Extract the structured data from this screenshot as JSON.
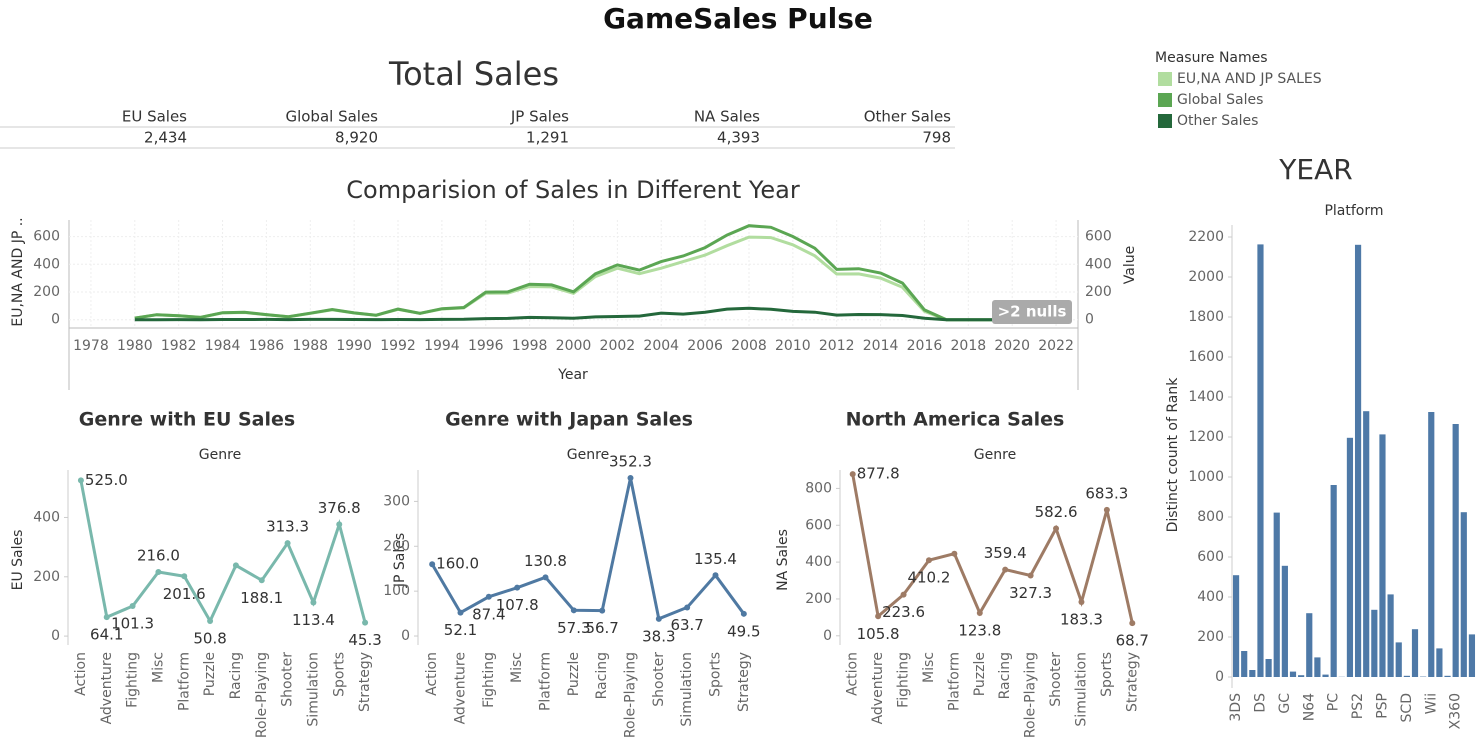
{
  "title": "GameSales Pulse",
  "summary": {
    "title": "Total Sales",
    "columns": [
      "EU Sales",
      "Global Sales",
      "JP Sales",
      "NA Sales",
      "Other Sales"
    ],
    "values": [
      "2,434",
      "8,920",
      "1,291",
      "4,393",
      "798"
    ]
  },
  "chart_data": [
    {
      "type": "line",
      "title": "Comparision of Sales in Different Year",
      "x_label": "Year",
      "y_label": "EU,NA AND JP ..",
      "y2_label": "Value",
      "legend_title": "Measure Names",
      "annotation": ">2 nulls",
      "grid": true,
      "x": [
        1980,
        1981,
        1982,
        1983,
        1984,
        1985,
        1986,
        1987,
        1988,
        1989,
        1990,
        1991,
        1992,
        1993,
        1994,
        1995,
        1996,
        1997,
        1998,
        1999,
        2000,
        2001,
        2002,
        2003,
        2004,
        2005,
        2006,
        2007,
        2008,
        2009,
        2010,
        2011,
        2012,
        2013,
        2014,
        2015,
        2016,
        2017,
        2020
      ],
      "xlim": [
        1977,
        2023
      ],
      "xticks": [
        1978,
        1980,
        1982,
        1984,
        1986,
        1988,
        1990,
        1992,
        1994,
        1996,
        1998,
        2000,
        2002,
        2004,
        2006,
        2008,
        2010,
        2012,
        2014,
        2016,
        2018,
        2020,
        2022
      ],
      "ylim": [
        -60,
        720
      ],
      "yticks": [
        0,
        200,
        400,
        600
      ],
      "y2lim": [
        -60,
        720
      ],
      "y2ticks": [
        0,
        200,
        400,
        600
      ],
      "series": [
        {
          "name": "EU,NA AND JP SALES",
          "color": "#b1dd9f",
          "axis": "y",
          "values": [
            11.3,
            35.5,
            28.3,
            16.7,
            49.0,
            52.2,
            35.2,
            21.0,
            45.2,
            71.3,
            48.0,
            31.4,
            74.5,
            45.1,
            77.3,
            85.5,
            191.4,
            191.7,
            239.6,
            236.7,
            190.6,
            311.5,
            372.2,
            331.9,
            371.9,
            419.3,
            466.6,
            534.3,
            596.5,
            592.6,
            540.6,
            461.6,
            330.0,
            330.9,
            300.1,
            234.3,
            60.7,
            0.05,
            0.27
          ]
        },
        {
          "name": "Global Sales",
          "color": "#5ba653",
          "axis": "y2",
          "values": [
            11.4,
            35.8,
            28.9,
            16.8,
            50.4,
            53.9,
            37.1,
            21.7,
            47.2,
            73.5,
            49.4,
            32.2,
            76.2,
            46.0,
            79.2,
            88.1,
            199.2,
            201.0,
            256.5,
            251.3,
            201.6,
            331.5,
            395.5,
            357.9,
            419.3,
            459.9,
            521.0,
            611.1,
            678.9,
            667.3,
            600.5,
            516.0,
            363.5,
            368.1,
            337.1,
            264.4,
            70.9,
            0.05,
            0.29
          ]
        },
        {
          "name": "Other Sales",
          "color": "#24683b",
          "axis": "y2",
          "values": [
            0.1,
            0.3,
            0.5,
            0.1,
            1.4,
            1.7,
            1.9,
            0.7,
            2.0,
            2.2,
            1.4,
            0.8,
            1.6,
            0.9,
            1.9,
            2.6,
            7.7,
            9.3,
            16.9,
            14.6,
            11.0,
            20.0,
            23.3,
            26.0,
            47.4,
            40.6,
            54.4,
            76.8,
            82.4,
            74.7,
            59.9,
            54.4,
            33.5,
            37.2,
            37.0,
            30.1,
            10.2,
            0,
            0.02
          ]
        }
      ]
    },
    {
      "type": "line",
      "title": "Genre with EU Sales",
      "x_label": "Genre",
      "y_label": "EU Sales",
      "color": "#79b8ac",
      "categories": [
        "Action",
        "Adventure",
        "Fighting",
        "Misc",
        "Platform",
        "Puzzle",
        "Racing",
        "Role-Playing",
        "Shooter",
        "Simulation",
        "Sports",
        "Strategy"
      ],
      "values": [
        525.0,
        64.1,
        101.3,
        216.0,
        201.6,
        50.8,
        238.4,
        188.1,
        313.3,
        113.4,
        376.8,
        45.3
      ],
      "value_labels": [
        "525.0",
        "64.1",
        "101.3",
        "216.0",
        "201.6",
        "50.8",
        null,
        "188.1",
        "313.3",
        "113.4",
        "376.8",
        "45.3"
      ],
      "ylim": [
        -30,
        560
      ],
      "yticks": [
        0,
        200,
        400
      ]
    },
    {
      "type": "line",
      "title": "Genre with Japan Sales",
      "x_label": "Genre",
      "y_label": "JP Sales",
      "color": "#4f79a2",
      "categories": [
        "Action",
        "Adventure",
        "Fighting",
        "Misc",
        "Platform",
        "Puzzle",
        "Racing",
        "Role-Playing",
        "Shooter",
        "Simulation",
        "Sports",
        "Strategy"
      ],
      "values": [
        160.0,
        52.1,
        87.4,
        107.8,
        130.8,
        57.3,
        56.7,
        352.3,
        38.3,
        63.7,
        135.4,
        49.5
      ],
      "value_labels": [
        "160.0",
        "52.1",
        "87.4",
        "107.8",
        "130.8",
        "57.3",
        "56.7",
        "352.3",
        "38.3",
        "63.7",
        "135.4",
        "49.5"
      ],
      "ylim": [
        -20,
        370
      ],
      "yticks": [
        0,
        100,
        200,
        300
      ]
    },
    {
      "type": "line",
      "title": "North America Sales",
      "x_label": "Genre",
      "y_label": "NA Sales",
      "color": "#9e7b65",
      "categories": [
        "Action",
        "Adventure",
        "Fighting",
        "Misc",
        "Platform",
        "Puzzle",
        "Racing",
        "Role-Playing",
        "Shooter",
        "Simulation",
        "Sports",
        "Strategy"
      ],
      "values": [
        877.8,
        105.8,
        223.6,
        410.2,
        445.5,
        123.8,
        359.4,
        327.3,
        582.6,
        183.3,
        683.3,
        68.7
      ],
      "value_labels": [
        "877.8",
        "105.8",
        "223.6",
        "410.2",
        null,
        "123.8",
        "359.4",
        "327.3",
        "582.6",
        "183.3",
        "683.3",
        "68.7"
      ],
      "ylim": [
        -50,
        900
      ],
      "yticks": [
        0,
        200,
        400,
        600,
        800
      ]
    },
    {
      "type": "bar",
      "title": "YEAR",
      "subtitle": "Platform",
      "y_label": "Distinct count of Rank",
      "color": "#4e79a7",
      "categories": [
        "3DS",
        null,
        null,
        "DS",
        null,
        null,
        "GC",
        null,
        null,
        "N64",
        null,
        null,
        "PC",
        null,
        null,
        "PS2",
        null,
        null,
        "PSP",
        null,
        null,
        "SCD",
        null,
        null,
        "Wii",
        null,
        null,
        "X360",
        null,
        null
      ],
      "values": [
        509,
        130,
        35,
        2163,
        90,
        822,
        556,
        27,
        9,
        319,
        98,
        12,
        960,
        1,
        1196,
        2161,
        1329,
        336,
        1213,
        413,
        173,
        6,
        239,
        2,
        1325,
        143,
        6,
        1265,
        824,
        213
      ],
      "ylim": [
        -55,
        2260
      ],
      "yticks": [
        0,
        200,
        400,
        600,
        800,
        1000,
        1200,
        1400,
        1600,
        1800,
        2000,
        2200
      ]
    }
  ]
}
